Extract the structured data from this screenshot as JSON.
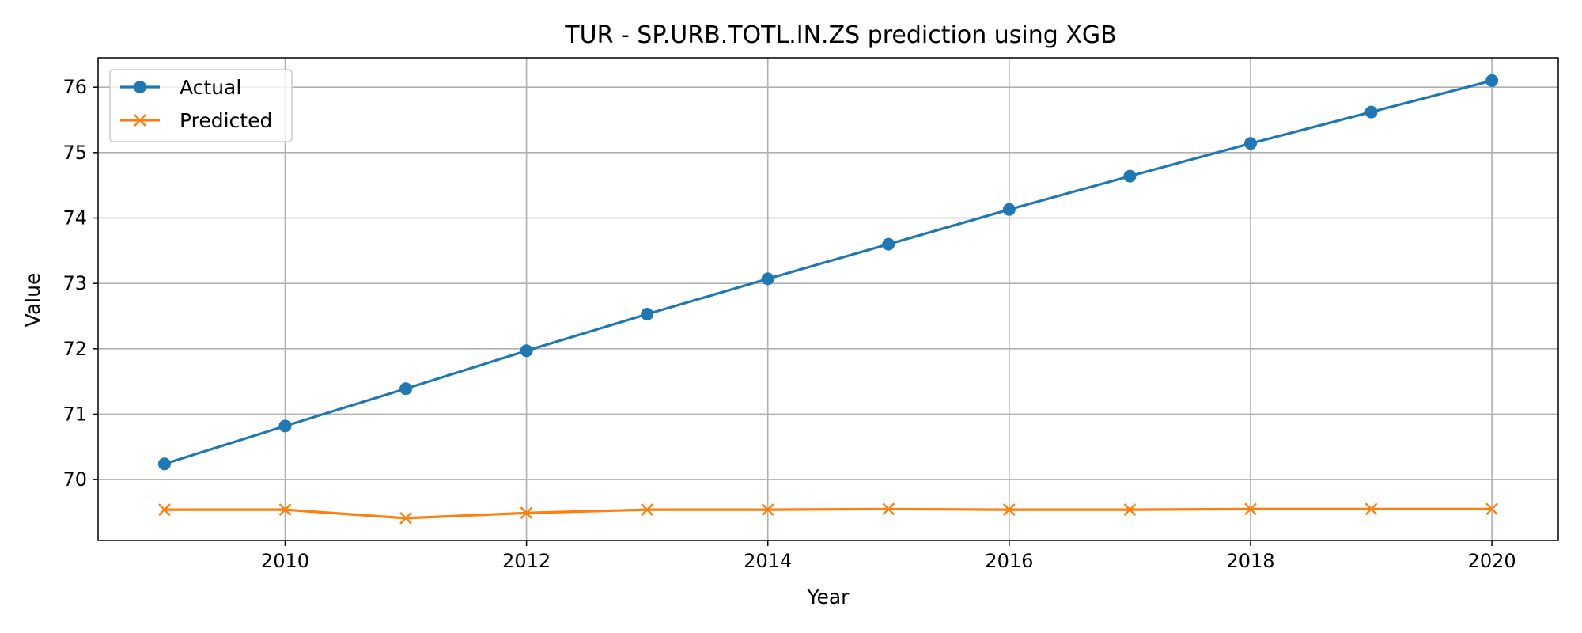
{
  "chart_data": {
    "type": "line",
    "title": "TUR - SP.URB.TOTL.IN.ZS prediction using XGB",
    "xlabel": "Year",
    "ylabel": "Value",
    "x": [
      2009,
      2010,
      2011,
      2012,
      2013,
      2014,
      2015,
      2016,
      2017,
      2018,
      2019,
      2020
    ],
    "xlim": [
      2008.45,
      2020.55
    ],
    "ylim": [
      69.07,
      76.45
    ],
    "xticks": [
      2010,
      2012,
      2014,
      2016,
      2018,
      2020
    ],
    "yticks": [
      70,
      71,
      72,
      73,
      74,
      75,
      76
    ],
    "grid": true,
    "legend_position": "top-left",
    "series": [
      {
        "name": "Actual",
        "color": "#1f77b4",
        "marker": "circle",
        "values": [
          70.24,
          70.82,
          71.39,
          71.97,
          72.53,
          73.07,
          73.6,
          74.13,
          74.64,
          75.14,
          75.62,
          76.1
        ]
      },
      {
        "name": "Predicted",
        "color": "#ff7f0e",
        "marker": "x",
        "values": [
          69.54,
          69.54,
          69.41,
          69.49,
          69.54,
          69.54,
          69.55,
          69.54,
          69.54,
          69.55,
          69.55,
          69.55
        ]
      }
    ]
  }
}
